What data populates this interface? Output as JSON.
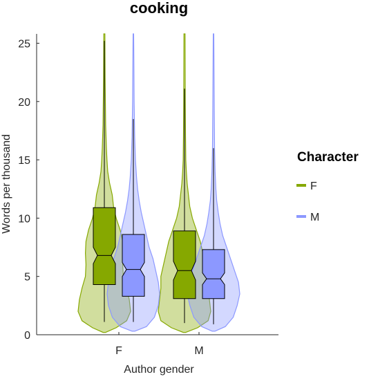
{
  "chart_data": {
    "type": "violin-box",
    "title": "cooking",
    "xlabel": "Author gender",
    "ylabel": "Words per thousand",
    "categories": [
      "F",
      "M"
    ],
    "ylim": [
      0,
      25.8
    ],
    "yticks": [
      0,
      5,
      10,
      15,
      20,
      25
    ],
    "grid": false,
    "legend": {
      "title": "Character",
      "placement": "right",
      "entries": [
        {
          "label": "F",
          "color": "#86A800"
        },
        {
          "label": "M",
          "color": "#8C98FF"
        }
      ]
    },
    "series": [
      {
        "name": "F",
        "color": "#86A800",
        "groups": [
          {
            "category": "F",
            "box": {
              "whisker_low": 1.1,
              "q1": 4.3,
              "median": 6.8,
              "q3": 10.9,
              "whisker_high": 25.2,
              "notch_low": 6.1,
              "notch_high": 7.5
            },
            "violin": {
              "y_min": 0.2,
              "y_max": 25.8,
              "profile": [
                [
                  0.2,
                  0.05
                ],
                [
                  0.6,
                  0.45
                ],
                [
                  1.2,
                  0.85
                ],
                [
                  2,
                  1.0
                ],
                [
                  3,
                  0.95
                ],
                [
                  4,
                  0.85
                ],
                [
                  5,
                  0.72
                ],
                [
                  6,
                  0.7
                ],
                [
                  7,
                  0.72
                ],
                [
                  8,
                  0.7
                ],
                [
                  9,
                  0.6
                ],
                [
                  10,
                  0.45
                ],
                [
                  11,
                  0.35
                ],
                [
                  12,
                  0.3
                ],
                [
                  13,
                  0.2
                ],
                [
                  14,
                  0.13
                ],
                [
                  15,
                  0.1
                ],
                [
                  16,
                  0.08
                ],
                [
                  18,
                  0.05
                ],
                [
                  20,
                  0.04
                ],
                [
                  22,
                  0.03
                ],
                [
                  25.8,
                  0.02
                ]
              ]
            }
          },
          {
            "category": "M",
            "box": {
              "whisker_low": 1.0,
              "q1": 3.1,
              "median": 5.5,
              "q3": 8.9,
              "whisker_high": 21.1,
              "notch_low": 4.7,
              "notch_high": 6.3
            },
            "violin": {
              "y_min": 0.2,
              "y_max": 25.8,
              "profile": [
                [
                  0.2,
                  0.05
                ],
                [
                  0.6,
                  0.5
                ],
                [
                  1.2,
                  0.9
                ],
                [
                  2,
                  1.0
                ],
                [
                  3,
                  0.95
                ],
                [
                  4,
                  0.9
                ],
                [
                  5,
                  0.9
                ],
                [
                  6,
                  0.8
                ],
                [
                  7,
                  0.7
                ],
                [
                  8,
                  0.6
                ],
                [
                  9,
                  0.45
                ],
                [
                  10,
                  0.3
                ],
                [
                  11,
                  0.2
                ],
                [
                  12,
                  0.15
                ],
                [
                  13,
                  0.1
                ],
                [
                  14,
                  0.07
                ],
                [
                  15,
                  0.05
                ],
                [
                  17,
                  0.04
                ],
                [
                  20,
                  0.03
                ],
                [
                  25.8,
                  0.02
                ]
              ]
            }
          }
        ]
      },
      {
        "name": "M",
        "color": "#8C98FF",
        "groups": [
          {
            "category": "F",
            "box": {
              "whisker_low": 1.1,
              "q1": 3.3,
              "median": 5.6,
              "q3": 8.6,
              "whisker_high": 18.5,
              "notch_low": 5.0,
              "notch_high": 6.2
            },
            "violin": {
              "y_min": 0.3,
              "y_max": 25.8,
              "profile": [
                [
                  0.3,
                  0.05
                ],
                [
                  0.7,
                  0.5
                ],
                [
                  1.5,
                  0.8
                ],
                [
                  2.5,
                  0.95
                ],
                [
                  3.5,
                  1.0
                ],
                [
                  4.5,
                  0.95
                ],
                [
                  5.5,
                  0.85
                ],
                [
                  6.5,
                  0.75
                ],
                [
                  7.5,
                  0.6
                ],
                [
                  8.5,
                  0.5
                ],
                [
                  9.5,
                  0.4
                ],
                [
                  10.5,
                  0.3
                ],
                [
                  11.5,
                  0.22
                ],
                [
                  12.5,
                  0.16
                ],
                [
                  13.5,
                  0.12
                ],
                [
                  15,
                  0.08
                ],
                [
                  17,
                  0.05
                ],
                [
                  20,
                  0.03
                ],
                [
                  23,
                  0.02
                ],
                [
                  25.8,
                  0.01
                ]
              ]
            }
          },
          {
            "category": "M",
            "box": {
              "whisker_low": 0.9,
              "q1": 3.1,
              "median": 4.8,
              "q3": 7.3,
              "whisker_high": 16.0,
              "notch_low": 4.3,
              "notch_high": 5.3
            },
            "violin": {
              "y_min": 0.3,
              "y_max": 25.8,
              "profile": [
                [
                  0.3,
                  0.05
                ],
                [
                  0.7,
                  0.45
                ],
                [
                  1.5,
                  0.75
                ],
                [
                  2.5,
                  0.9
                ],
                [
                  3.5,
                  1.0
                ],
                [
                  4.5,
                  0.95
                ],
                [
                  5.5,
                  0.8
                ],
                [
                  6.5,
                  0.65
                ],
                [
                  7.5,
                  0.5
                ],
                [
                  8.5,
                  0.35
                ],
                [
                  9.5,
                  0.25
                ],
                [
                  10.5,
                  0.18
                ],
                [
                  11.5,
                  0.12
                ],
                [
                  12.5,
                  0.09
                ],
                [
                  14,
                  0.06
                ],
                [
                  16,
                  0.04
                ],
                [
                  19,
                  0.03
                ],
                [
                  22,
                  0.02
                ],
                [
                  25.8,
                  0.01
                ]
              ]
            }
          }
        ]
      }
    ]
  }
}
